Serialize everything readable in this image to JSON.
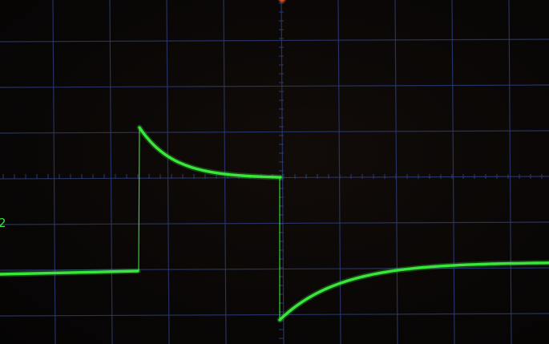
{
  "screen": {
    "grid_color": "#2b3a73",
    "trace_color": "#39e63a",
    "background_color": "#0a0706"
  },
  "channel_label": "2",
  "trigger_marker": {
    "icon": "trigger-position-dot",
    "color": "#ff5a1f"
  },
  "grid": {
    "horizontal_divisions": 10,
    "vertical_divisions": 8
  }
}
